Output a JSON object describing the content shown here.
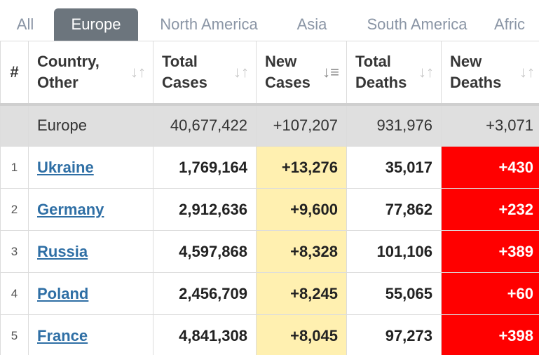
{
  "tabs": [
    {
      "label": "All",
      "active": false
    },
    {
      "label": "Europe",
      "active": true
    },
    {
      "label": "North America",
      "active": false
    },
    {
      "label": "Asia",
      "active": false
    },
    {
      "label": "South America",
      "active": false
    },
    {
      "label": "Afric",
      "active": false
    }
  ],
  "table": {
    "headers": {
      "index": "#",
      "country_line1": "Country,",
      "country_line2": "Other",
      "total_cases_line1": "Total",
      "total_cases_line2": "Cases",
      "new_cases_line1": "New",
      "new_cases_line2": "Cases",
      "total_deaths_line1": "Total",
      "total_deaths_line2": "Deaths",
      "new_deaths_line1": "New",
      "new_deaths_line2": "Deaths"
    },
    "sort_icon": "↓↑",
    "sort_active_icon": "↓≡",
    "total_row": {
      "label": "Europe",
      "total_cases": "40,677,422",
      "new_cases": "+107,207",
      "total_deaths": "931,976",
      "new_deaths": "+3,071"
    },
    "rows": [
      {
        "index": "1",
        "country": "Ukraine",
        "total_cases": "1,769,164",
        "new_cases": "+13,276",
        "total_deaths": "35,017",
        "new_deaths": "+430"
      },
      {
        "index": "2",
        "country": "Germany",
        "total_cases": "2,912,636",
        "new_cases": "+9,600",
        "total_deaths": "77,862",
        "new_deaths": "+232"
      },
      {
        "index": "3",
        "country": "Russia",
        "total_cases": "4,597,868",
        "new_cases": "+8,328",
        "total_deaths": "101,106",
        "new_deaths": "+389"
      },
      {
        "index": "4",
        "country": "Poland",
        "total_cases": "2,456,709",
        "new_cases": "+8,245",
        "total_deaths": "55,065",
        "new_deaths": "+60"
      },
      {
        "index": "5",
        "country": "France",
        "total_cases": "4,841,308",
        "new_cases": "+8,045",
        "total_deaths": "97,273",
        "new_deaths": "+398"
      }
    ]
  },
  "colors": {
    "active_tab_bg": "#6c757d",
    "inactive_tab_text": "#8a95a5",
    "new_cases_highlight": "#fff0b0",
    "new_deaths_highlight": "#ff0000",
    "country_link": "#2f6fa5",
    "total_row_bg": "#dfdfdf"
  }
}
